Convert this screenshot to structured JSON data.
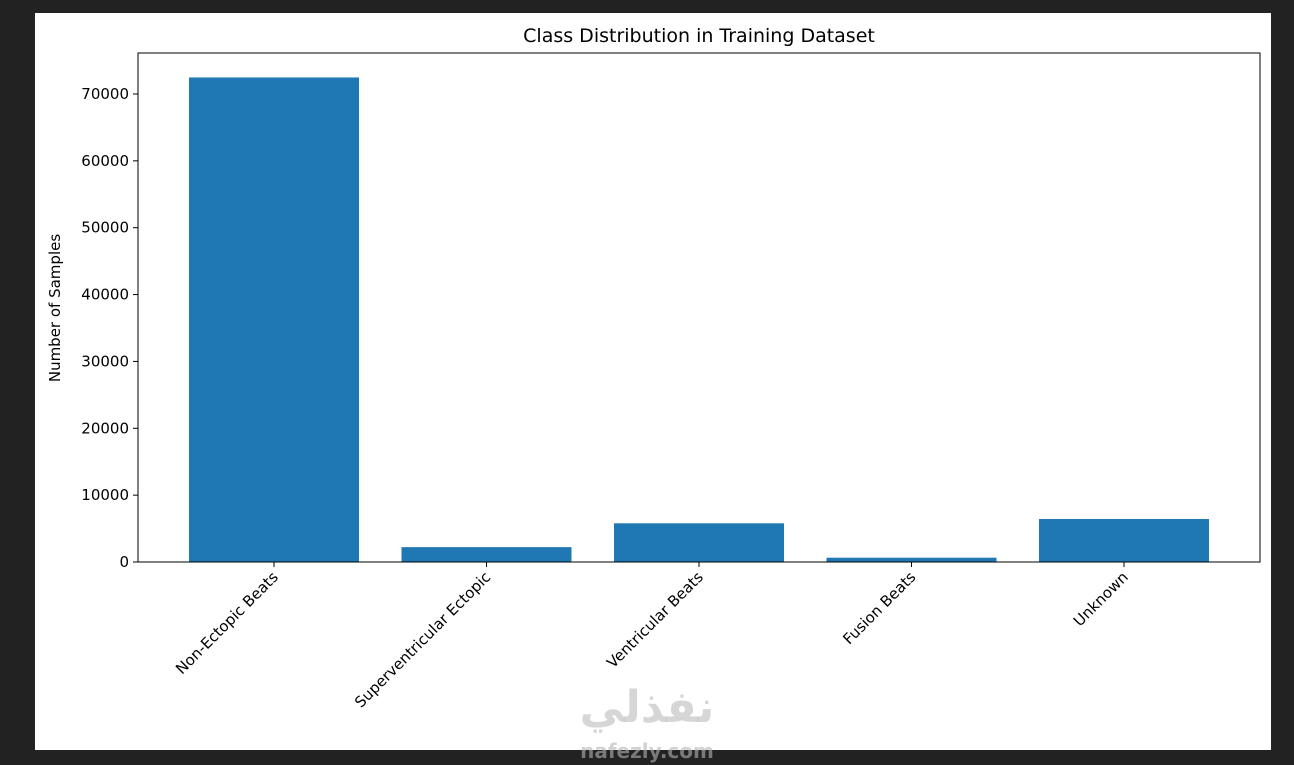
{
  "chart_data": {
    "type": "bar",
    "title": "Class Distribution in Training Dataset",
    "ylabel": "Number of Samples",
    "categories": [
      "Non-Ectopic Beats",
      "Superventricular Ectopic",
      "Ventricular Beats",
      "Fusion Beats",
      "Unknown"
    ],
    "values": [
      72471,
      2223,
      5788,
      641,
      6431
    ],
    "color": "#1f77b4",
    "ylim": [
      0,
      76130
    ],
    "yticks": [
      0,
      10000,
      20000,
      30000,
      40000,
      50000,
      60000,
      70000
    ],
    "grid": false
  },
  "watermark": {
    "arabic": "نفذلي",
    "latin": "nafezly.com"
  }
}
